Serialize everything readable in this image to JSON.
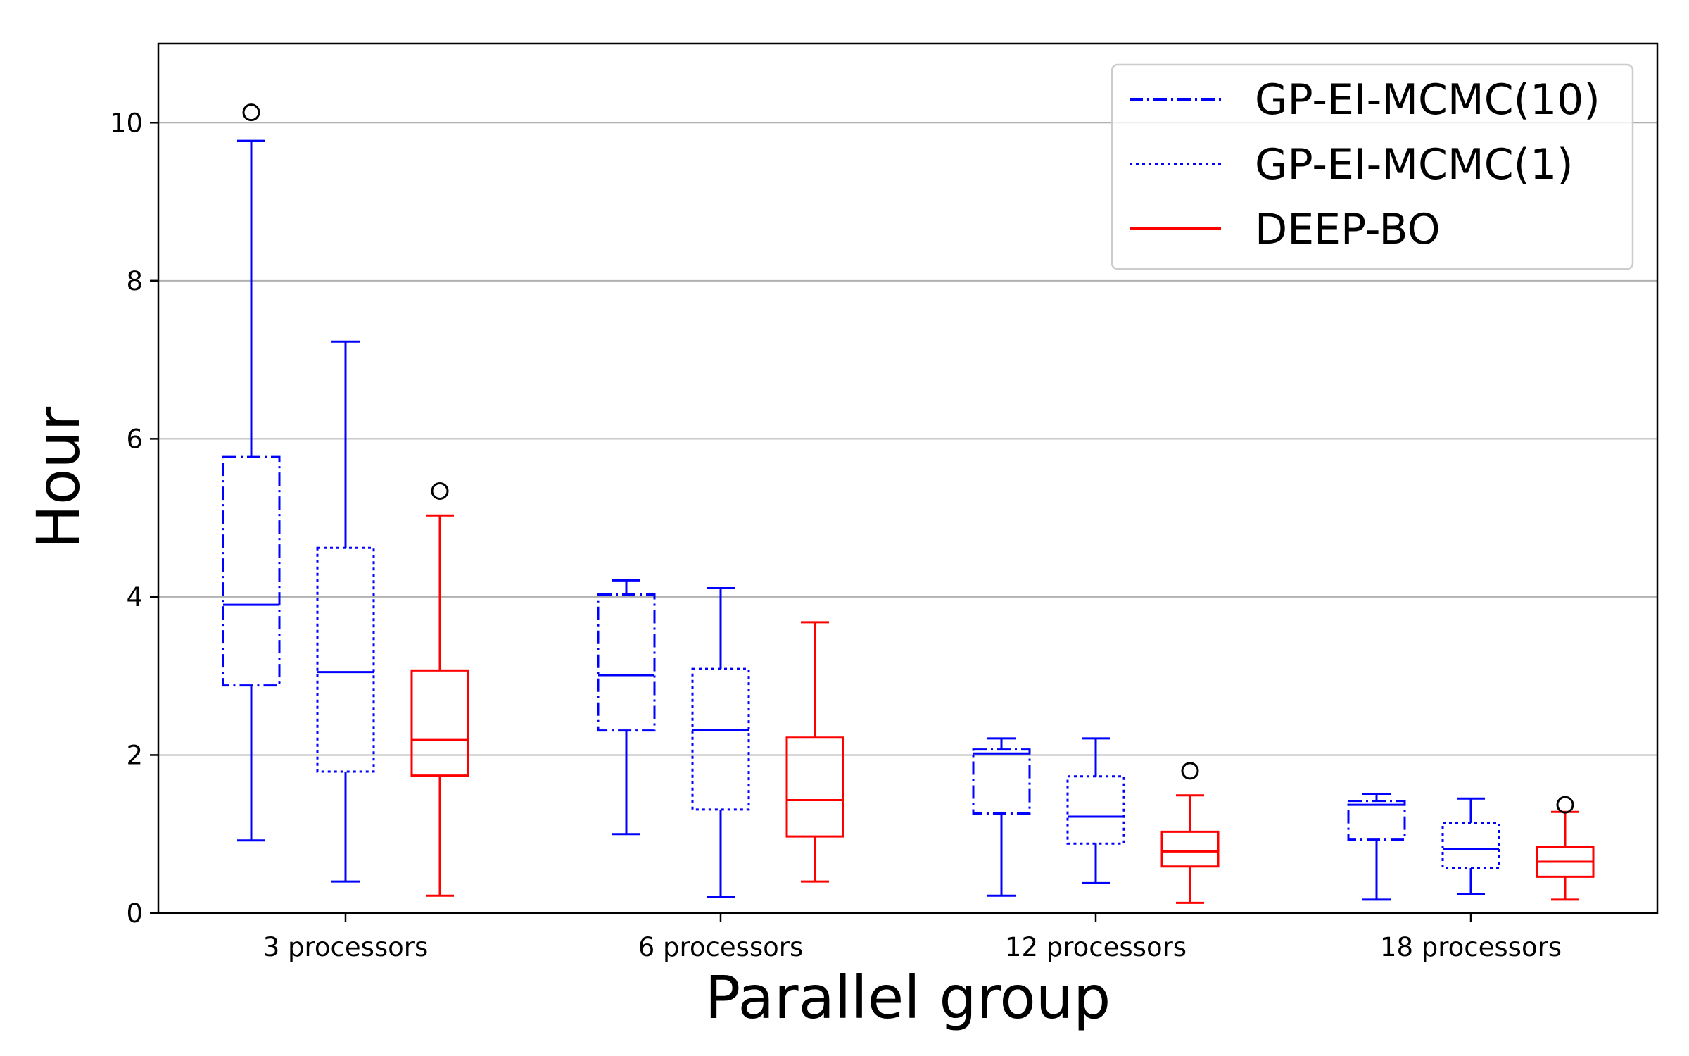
{
  "chart_data": {
    "type": "boxplot",
    "title": "",
    "xlabel": "Parallel group",
    "ylabel": "Hour",
    "ylim": [
      0,
      11
    ],
    "yticks": [
      0,
      2,
      4,
      6,
      8,
      10
    ],
    "grid": "horizontal",
    "legend_position": "top-right",
    "categories": [
      "3 processors",
      "6 processors",
      "12 processors",
      "18 processors"
    ],
    "series": [
      {
        "name": "GP-EI-MCMC(10)",
        "color": "#0000ff",
        "line_style": "dashdot",
        "boxes": [
          {
            "whisker_low": 0.92,
            "q1": 2.88,
            "median": 3.9,
            "q3": 5.77,
            "whisker_high": 9.77,
            "outliers": [
              10.13
            ]
          },
          {
            "whisker_low": 1.0,
            "q1": 2.31,
            "median": 3.01,
            "q3": 4.03,
            "whisker_high": 4.21,
            "outliers": []
          },
          {
            "whisker_low": 0.22,
            "q1": 1.26,
            "median": 2.02,
            "q3": 2.07,
            "whisker_high": 2.21,
            "outliers": []
          },
          {
            "whisker_low": 0.17,
            "q1": 0.93,
            "median": 1.37,
            "q3": 1.42,
            "whisker_high": 1.51,
            "outliers": []
          }
        ]
      },
      {
        "name": "GP-EI-MCMC(1)",
        "color": "#0000ff",
        "line_style": "dotted",
        "boxes": [
          {
            "whisker_low": 0.4,
            "q1": 1.79,
            "median": 3.05,
            "q3": 4.62,
            "whisker_high": 7.23,
            "outliers": []
          },
          {
            "whisker_low": 0.2,
            "q1": 1.31,
            "median": 2.32,
            "q3": 3.09,
            "whisker_high": 4.11,
            "outliers": []
          },
          {
            "whisker_low": 0.38,
            "q1": 0.88,
            "median": 1.22,
            "q3": 1.73,
            "whisker_high": 2.21,
            "outliers": []
          },
          {
            "whisker_low": 0.24,
            "q1": 0.57,
            "median": 0.81,
            "q3": 1.14,
            "whisker_high": 1.45,
            "outliers": []
          }
        ]
      },
      {
        "name": "DEEP-BO",
        "color": "#ff0000",
        "line_style": "solid",
        "boxes": [
          {
            "whisker_low": 0.22,
            "q1": 1.74,
            "median": 2.19,
            "q3": 3.07,
            "whisker_high": 5.03,
            "outliers": [
              5.34
            ]
          },
          {
            "whisker_low": 0.4,
            "q1": 0.97,
            "median": 1.43,
            "q3": 2.22,
            "whisker_high": 3.68,
            "outliers": []
          },
          {
            "whisker_low": 0.13,
            "q1": 0.59,
            "median": 0.78,
            "q3": 1.03,
            "whisker_high": 1.49,
            "outliers": [
              1.8
            ]
          },
          {
            "whisker_low": 0.17,
            "q1": 0.46,
            "median": 0.65,
            "q3": 0.84,
            "whisker_high": 1.28,
            "outliers": [
              1.37
            ]
          }
        ]
      }
    ]
  }
}
